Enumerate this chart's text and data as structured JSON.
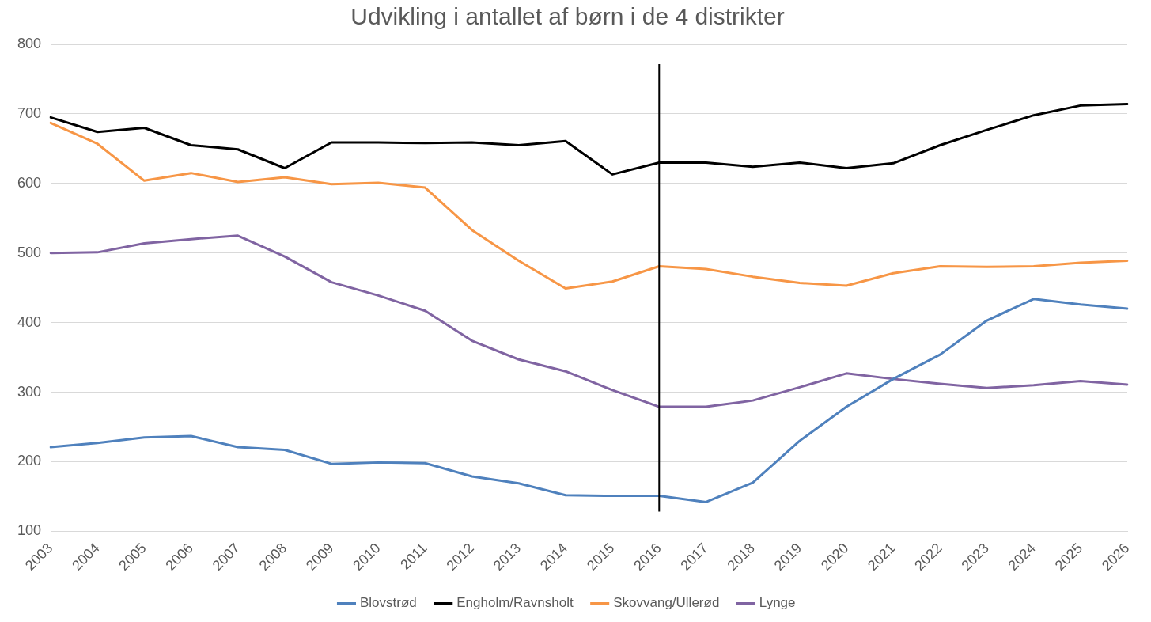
{
  "chart_data": {
    "type": "line",
    "title": "Udvikling i antallet af børn i de 4 distrikter",
    "categories": [
      "2003",
      "2004",
      "2005",
      "2006",
      "2007",
      "2008",
      "2009",
      "2010",
      "2011",
      "2012",
      "2013",
      "2014",
      "2015",
      "2016",
      "2017",
      "2018",
      "2019",
      "2020",
      "2021",
      "2022",
      "2023",
      "2024",
      "2025",
      "2026"
    ],
    "series": [
      {
        "name": "Blovstrød",
        "color": "#4f81bd",
        "values": [
          221,
          227,
          235,
          237,
          221,
          217,
          197,
          199,
          198,
          179,
          169,
          152,
          151,
          151,
          142,
          170,
          230,
          279,
          319,
          354,
          403,
          434,
          426,
          420
        ]
      },
      {
        "name": "Engholm/Ravnsholt",
        "color": "#000000",
        "values": [
          695,
          674,
          680,
          655,
          649,
          622,
          659,
          659,
          658,
          659,
          655,
          661,
          613,
          630,
          630,
          624,
          630,
          622,
          629,
          655,
          677,
          698,
          712,
          714
        ]
      },
      {
        "name": "Skovvang/Ullerød",
        "color": "#f79646",
        "values": [
          687,
          657,
          604,
          615,
          602,
          609,
          599,
          601,
          594,
          533,
          489,
          449,
          459,
          481,
          477,
          466,
          457,
          453,
          471,
          481,
          480,
          481,
          486,
          489
        ]
      },
      {
        "name": "Lynge",
        "color": "#8064a2",
        "values": [
          500,
          501,
          514,
          520,
          525,
          495,
          458,
          439,
          417,
          374,
          347,
          330,
          303,
          279,
          279,
          288,
          307,
          327,
          319,
          312,
          306,
          310,
          316,
          311
        ]
      }
    ],
    "ylim": [
      100,
      800
    ],
    "yticks": [
      100,
      200,
      300,
      400,
      500,
      600,
      700,
      800
    ],
    "grid": "y",
    "legend": "bottom",
    "marker": "none",
    "line_style": "solid",
    "ref_lines": [
      {
        "axis": "x",
        "value": "2016",
        "color": "#000000"
      }
    ]
  }
}
